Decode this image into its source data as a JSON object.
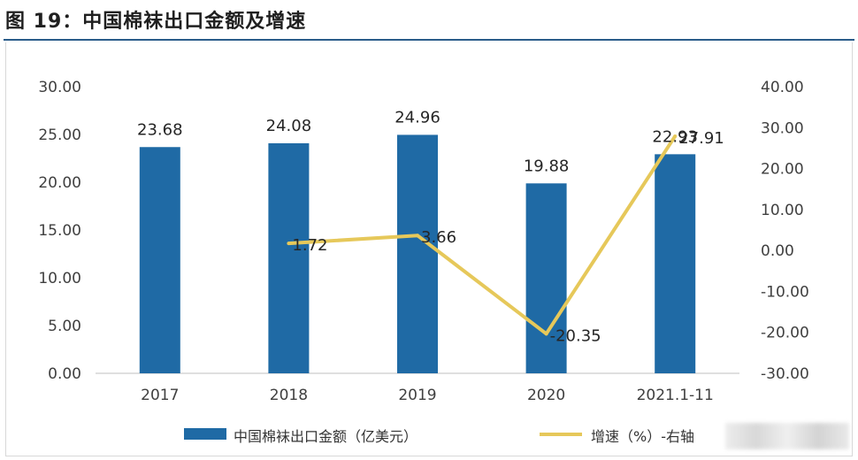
{
  "header": {
    "title": "图 19：中国棉袜出口金额及增速"
  },
  "chart_data": {
    "type": "bar",
    "categories": [
      "2017",
      "2018",
      "2019",
      "2020",
      "2021.1-11"
    ],
    "series": [
      {
        "name": "中国棉袜出口金额（亿美元）",
        "type": "bar",
        "axis": "left",
        "values": [
          23.68,
          24.08,
          24.96,
          19.88,
          22.93
        ],
        "labels": [
          "23.68",
          "24.08",
          "24.96",
          "19.88",
          "22.93"
        ]
      },
      {
        "name": "增速（%）-右轴",
        "type": "line",
        "axis": "right",
        "values": [
          null,
          1.72,
          3.66,
          -20.35,
          27.91
        ],
        "labels": [
          "",
          "1.72",
          "3.66",
          "-20.35",
          "27.91"
        ]
      }
    ],
    "y_left": {
      "ylim": [
        0,
        30
      ],
      "ticks": [
        "0.00",
        "5.00",
        "10.00",
        "15.00",
        "20.00",
        "25.00",
        "30.00"
      ]
    },
    "y_right": {
      "ylim": [
        -30,
        40
      ],
      "ticks": [
        "-30.00",
        "-20.00",
        "-10.00",
        "0.00",
        "10.00",
        "20.00",
        "30.00",
        "40.00"
      ]
    },
    "grid": false,
    "legend": "bottom",
    "colors": {
      "bar": "#1f6aa5",
      "line": "#e6c85a"
    }
  }
}
